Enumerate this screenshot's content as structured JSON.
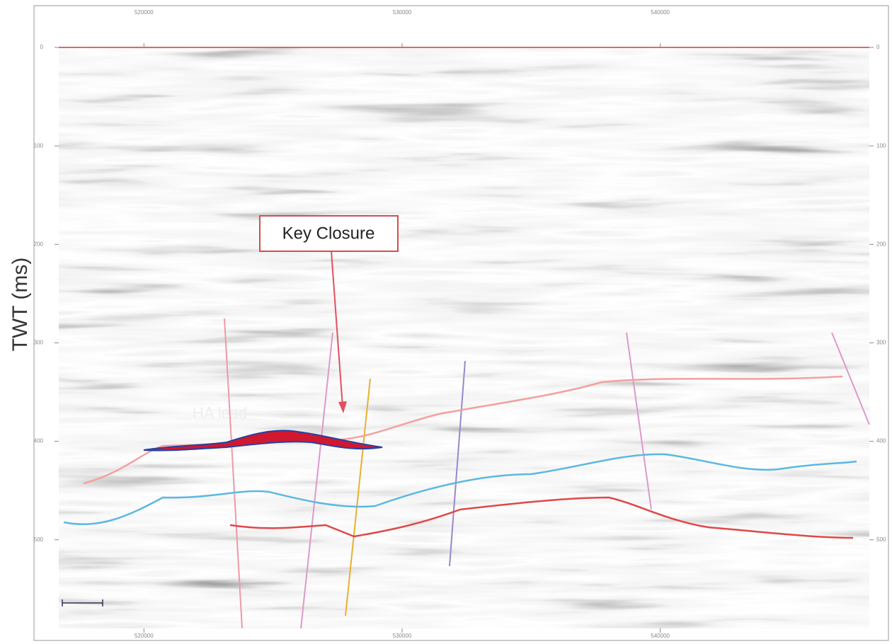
{
  "chart_data": {
    "type": "seismic",
    "ylabel": "TWT (ms)",
    "xlim": [
      516700,
      548100
    ],
    "ylim": [
      0,
      590
    ],
    "xticks": [
      520000,
      530000,
      540000
    ],
    "yticks": [
      0,
      100,
      200,
      300,
      400,
      500
    ],
    "annotations": [
      "Key Closure",
      "HA lead"
    ]
  }
}
